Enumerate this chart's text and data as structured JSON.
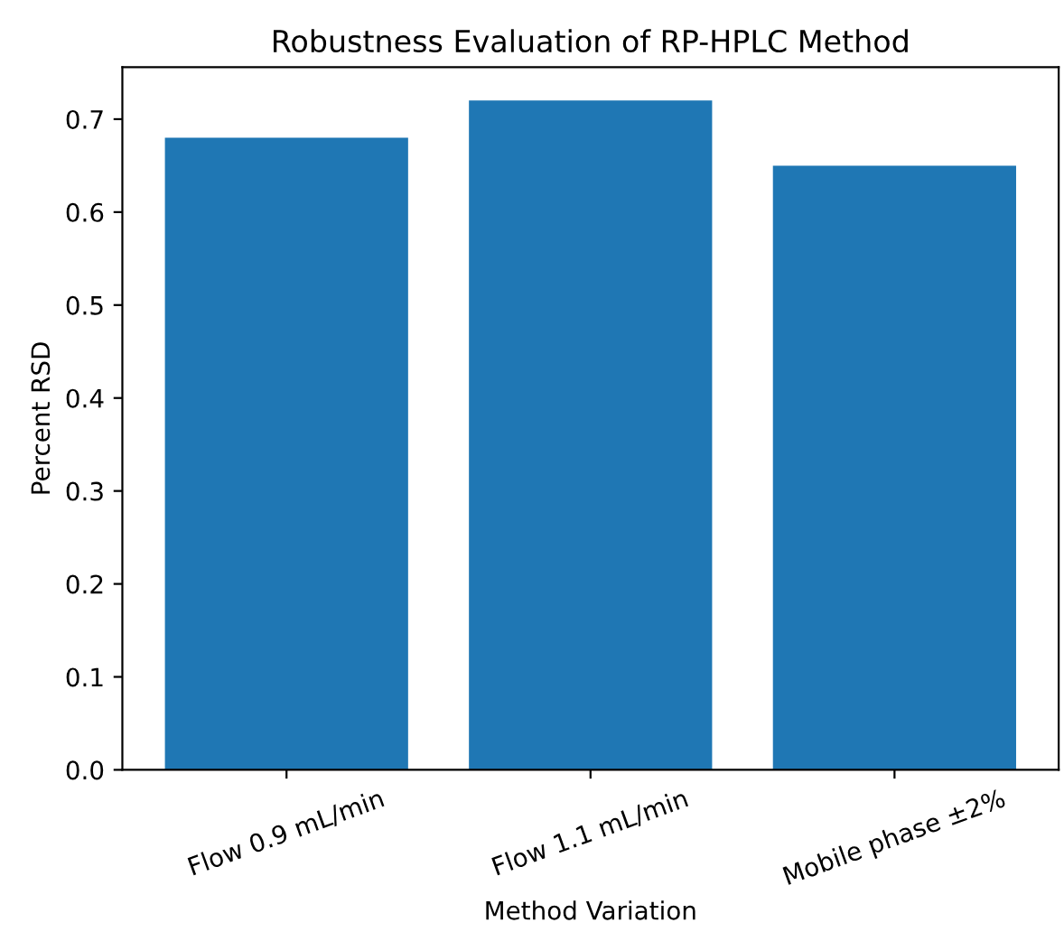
{
  "chart_data": {
    "type": "bar",
    "title": "Robustness Evaluation of RP-HPLC Method",
    "xlabel": "Method Variation",
    "ylabel": "Percent RSD",
    "categories": [
      "Flow 0.9 mL/min",
      "Flow 1.1 mL/min",
      "Mobile phase ±2%"
    ],
    "values": [
      0.68,
      0.72,
      0.65
    ],
    "color": "#1f77b4",
    "ylim": [
      0,
      0.756
    ],
    "yticks": [
      {
        "value": 0,
        "label": "0.0"
      },
      0.1,
      0.2,
      0.3,
      0.4,
      0.5,
      0.6,
      0.7
    ],
    "grid": false
  }
}
